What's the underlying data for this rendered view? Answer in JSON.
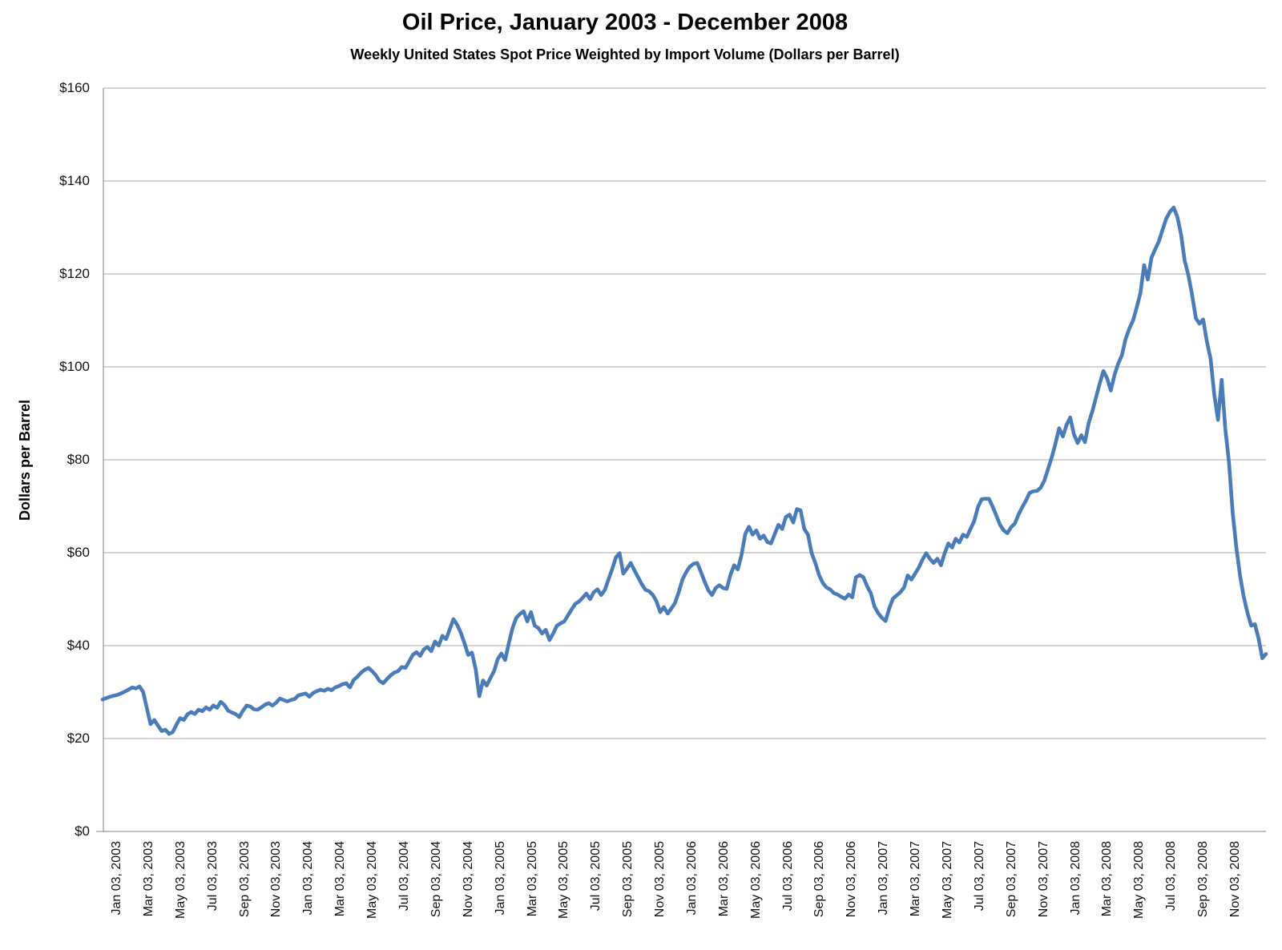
{
  "chart_data": {
    "type": "line",
    "title": "Oil Price, January 2003 - December 2008",
    "subtitle": "Weekly United States Spot Price Weighted by Import Volume (Dollars per Barrel)",
    "ylabel": "Dollars per Barrel",
    "ylim": [
      0,
      160
    ],
    "ytick_step": 20,
    "ytick_labels": [
      "$0",
      "$20",
      "$40",
      "$60",
      "$80",
      "$100",
      "$120",
      "$140",
      "$160"
    ],
    "xtick_labels": [
      "Jan 03, 2003",
      "Mar 03, 2003",
      "May 03, 2003",
      "Jul 03, 2003",
      "Sep 03, 2003",
      "Nov 03, 2003",
      "Jan 03, 2004",
      "Mar 03, 2004",
      "May 03, 2004",
      "Jul 03, 2004",
      "Sep 03, 2004",
      "Nov 03, 2004",
      "Jan 03, 2005",
      "Mar 03, 2005",
      "May 03, 2005",
      "Jul 03, 2005",
      "Sep 03, 2005",
      "Nov 03, 2005",
      "Jan 03, 2006",
      "Mar 03, 2006",
      "May 03, 2006",
      "Jul 03, 2006",
      "Sep 03, 2006",
      "Nov 03, 2006",
      "Jan 03, 2007",
      "Mar 03, 2007",
      "May 03, 2007",
      "Jul 03, 2007",
      "Sep 03, 2007",
      "Nov 03, 2007",
      "Jan 03, 2008",
      "Mar 03, 2008",
      "May 03, 2008",
      "Jul 03, 2008",
      "Sep 03, 2008",
      "Nov 03, 2008"
    ],
    "grid": "horizontal",
    "legend_position": "none",
    "line_color": "#4a7cba",
    "grid_color": "#a8a8a8",
    "axis_color": "#808080",
    "text_color": "#000000",
    "x_frequency": "weekly",
    "values": [
      28.4,
      28.7,
      29.0,
      29.2,
      29.4,
      29.7,
      30.1,
      30.5,
      31.0,
      30.8,
      31.2,
      30.0,
      26.5,
      23.1,
      24.0,
      22.8,
      21.6,
      21.9,
      21.0,
      21.4,
      23.0,
      24.4,
      24.0,
      25.2,
      25.7,
      25.3,
      26.2,
      25.9,
      26.7,
      26.2,
      27.1,
      26.6,
      27.9,
      27.2,
      26.0,
      25.6,
      25.3,
      24.6,
      26.0,
      27.1,
      26.9,
      26.3,
      26.2,
      26.7,
      27.3,
      27.6,
      27.1,
      27.7,
      28.6,
      28.3,
      28.0,
      28.3,
      28.5,
      29.3,
      29.5,
      29.7,
      29.0,
      29.8,
      30.2,
      30.5,
      30.3,
      30.7,
      30.4,
      31.0,
      31.3,
      31.7,
      31.9,
      31.0,
      32.6,
      33.3,
      34.2,
      34.8,
      35.2,
      34.5,
      33.6,
      32.4,
      31.9,
      32.8,
      33.6,
      34.2,
      34.5,
      35.4,
      35.2,
      36.6,
      38.0,
      38.6,
      37.8,
      39.2,
      39.7,
      38.8,
      40.9,
      40.0,
      42.1,
      41.4,
      43.5,
      45.7,
      44.5,
      42.8,
      40.5,
      38.0,
      38.5,
      35.0,
      29.1,
      32.5,
      31.4,
      33.0,
      34.5,
      37.1,
      38.3,
      36.9,
      40.5,
      43.8,
      46.0,
      46.8,
      47.4,
      45.2,
      47.2,
      44.3,
      43.8,
      42.6,
      43.4,
      41.2,
      42.6,
      44.3,
      44.8,
      45.2,
      46.5,
      47.8,
      49.0,
      49.5,
      50.3,
      51.2,
      50.0,
      51.5,
      52.1,
      50.9,
      52.0,
      54.3,
      56.5,
      59.0,
      59.9,
      55.5,
      56.6,
      57.8,
      56.2,
      54.7,
      53.2,
      52.0,
      51.7,
      50.9,
      49.5,
      47.2,
      48.3,
      46.9,
      48.0,
      49.2,
      51.5,
      54.2,
      55.8,
      57.0,
      57.6,
      57.8,
      55.9,
      53.8,
      51.9,
      50.9,
      52.4,
      53.0,
      52.4,
      52.2,
      55.2,
      57.3,
      56.4,
      59.5,
      64.0,
      65.6,
      63.9,
      64.8,
      63.0,
      63.7,
      62.3,
      62.0,
      64.0,
      66.0,
      65.1,
      67.7,
      68.2,
      66.5,
      69.4,
      69.1,
      65.1,
      63.9,
      59.9,
      57.8,
      55.2,
      53.5,
      52.5,
      52.1,
      51.3,
      51.0,
      50.5,
      50.1,
      51.0,
      50.4,
      54.7,
      55.2,
      54.7,
      52.8,
      51.3,
      48.4,
      47.0,
      46.0,
      45.3,
      48.0,
      50.1,
      50.8,
      51.5,
      52.5,
      55.1,
      54.2,
      55.5,
      56.8,
      58.5,
      59.9,
      58.7,
      57.8,
      58.7,
      57.3,
      59.9,
      62.0,
      61.1,
      63.0,
      62.2,
      63.9,
      63.4,
      65.1,
      66.8,
      69.8,
      71.5,
      71.6,
      71.6,
      69.9,
      68.0,
      66.0,
      64.8,
      64.2,
      65.5,
      66.3,
      68.2,
      69.8,
      71.2,
      72.9,
      73.2,
      73.3,
      74.0,
      75.5,
      78.0,
      80.5,
      83.5,
      86.8,
      85.0,
      87.5,
      89.1,
      85.5,
      83.6,
      85.3,
      83.8,
      87.9,
      90.5,
      93.5,
      96.5,
      99.1,
      97.5,
      94.9,
      98.3,
      100.7,
      102.5,
      106.0,
      108.2,
      110.0,
      112.8,
      115.9,
      121.9,
      118.8,
      123.5,
      125.3,
      127.0,
      129.5,
      131.9,
      133.4,
      134.3,
      132.3,
      128.5,
      122.8,
      119.7,
      115.5,
      110.5,
      109.3,
      110.2,
      105.5,
      101.7,
      94.0,
      88.6,
      97.2,
      86.6,
      79.3,
      68.5,
      61.0,
      55.0,
      50.5,
      47.0,
      44.3,
      44.6,
      41.5,
      37.3,
      38.2
    ]
  }
}
